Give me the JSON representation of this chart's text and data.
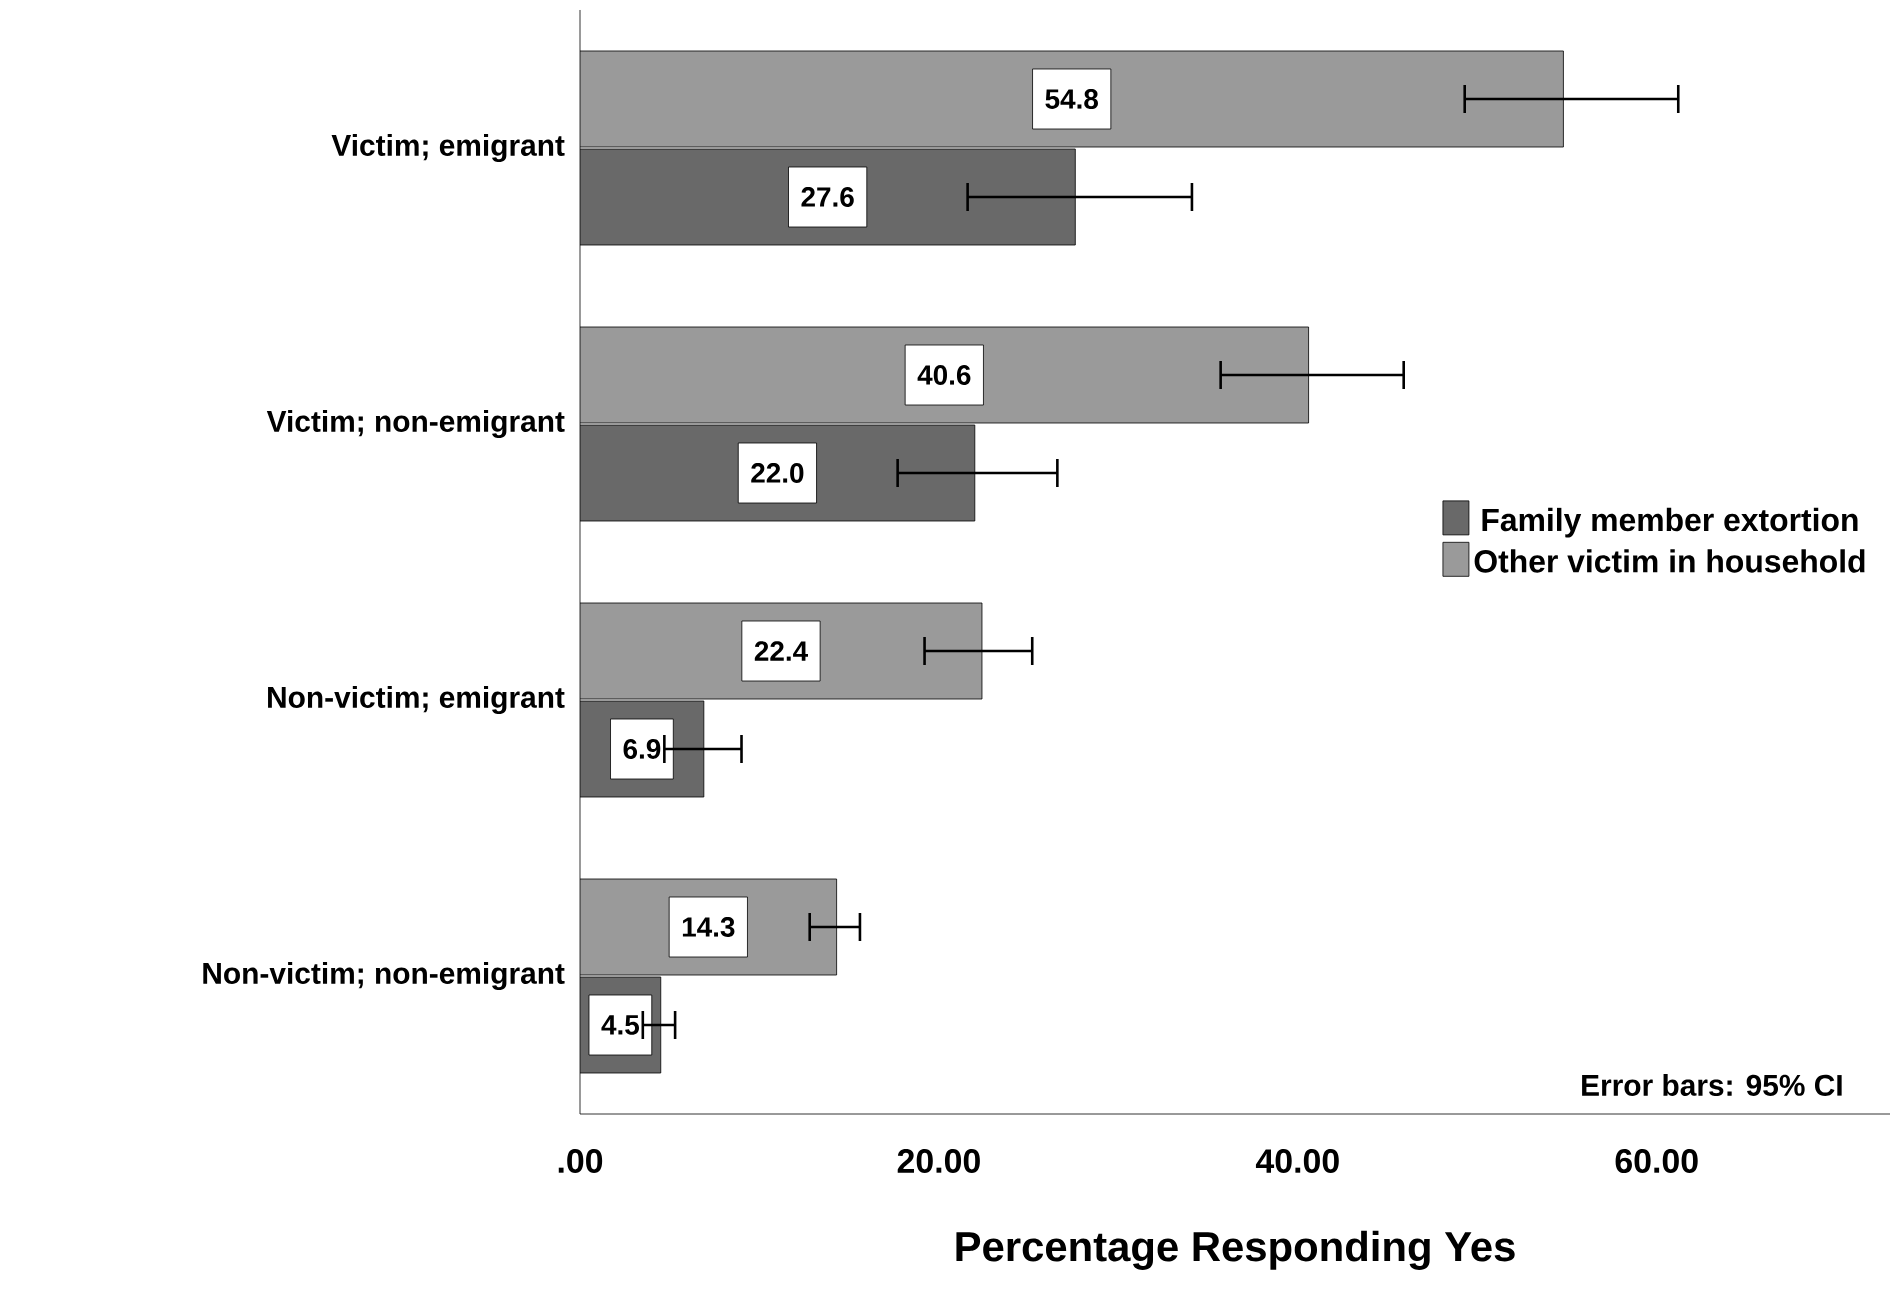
{
  "chart_data": {
    "type": "bar",
    "orientation": "horizontal",
    "categories": [
      "Victim; emigrant",
      "Victim; non-emigrant",
      "Non-victim; emigrant",
      "Non-victim; non-emigrant"
    ],
    "series": [
      {
        "name": "Family member extortion",
        "color": "#696969",
        "values": [
          27.6,
          22.0,
          6.9,
          4.5
        ],
        "value_labels": [
          "27.6",
          "22.0",
          "6.9",
          "4.5"
        ],
        "errors": [
          [
            21.6,
            34.1
          ],
          [
            17.7,
            26.6
          ],
          [
            4.7,
            9.0
          ],
          [
            3.5,
            5.3
          ]
        ]
      },
      {
        "name": "Other victim in household",
        "color": "#9a9a9a",
        "values": [
          54.8,
          40.6,
          22.4,
          14.3
        ],
        "value_labels": [
          "54.8",
          "40.6",
          "22.4",
          "14.3"
        ],
        "errors": [
          [
            49.3,
            61.2
          ],
          [
            35.7,
            45.9
          ],
          [
            19.2,
            25.2
          ],
          [
            12.8,
            15.6
          ]
        ]
      }
    ],
    "xlabel": "Percentage Responding Yes",
    "xlim": [
      0,
      73
    ],
    "xticks": [
      {
        "value": 0,
        "label": ".00"
      },
      {
        "value": 20,
        "label": "20.00"
      },
      {
        "value": 40,
        "label": "40.00"
      },
      {
        "value": 60,
        "label": "60.00"
      }
    ],
    "legend": "right",
    "grid": false,
    "annotations": [
      "Error bars: 95% CI"
    ]
  }
}
